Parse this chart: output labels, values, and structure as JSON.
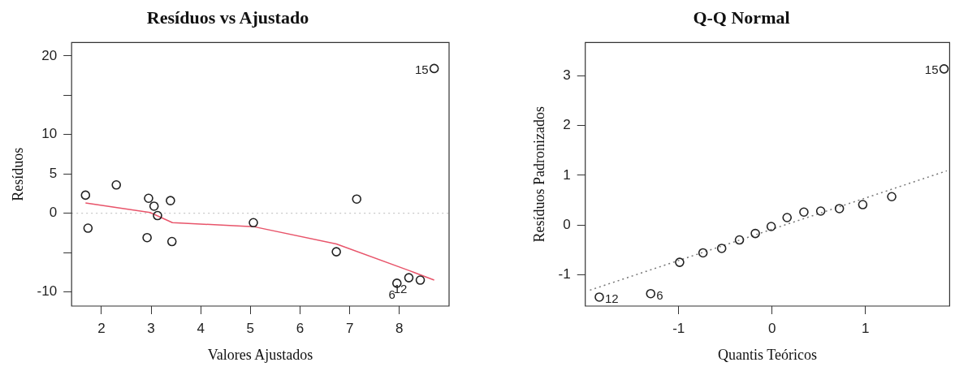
{
  "chart_data": [
    {
      "type": "scatter",
      "title": "Resíduos vs Ajustado",
      "xlabel": "Valores Ajustados",
      "ylabel": "Resíduos",
      "grid": false,
      "legend": false,
      "xlim": [
        1.4,
        9.0
      ],
      "xticks": [
        2,
        3,
        4,
        5,
        6,
        7,
        8
      ],
      "ylim": [
        -11.8,
        21.7
      ],
      "yticks": [
        -10,
        {
          "value": -5,
          "label": null
        },
        0,
        5,
        10,
        {
          "value": 15,
          "label": null
        },
        20
      ],
      "series": [
        {
          "marker": "circle",
          "color": "#222222",
          "x": [
            1.68,
            1.73,
            2.3,
            2.95,
            2.92,
            3.06,
            3.13,
            3.39,
            3.42,
            5.06,
            6.73,
            7.14,
            7.95,
            8.19,
            8.42,
            8.7
          ],
          "values": [
            2.3,
            -1.9,
            3.6,
            1.9,
            -3.1,
            0.9,
            -0.3,
            1.6,
            -3.6,
            -1.2,
            -4.9,
            1.8,
            -8.9,
            -8.2,
            -8.5,
            18.4
          ]
        },
        {
          "type": "line",
          "color": "#e8546a",
          "line_style": "solid",
          "x": [
            1.68,
            2.98,
            3.43,
            5.06,
            6.73,
            8.2,
            8.7
          ],
          "values": [
            1.3,
            0.1,
            -1.2,
            -1.7,
            -3.9,
            -7.3,
            -8.5
          ]
        }
      ],
      "ref_lines": [
        {
          "axis": "y",
          "value": 0,
          "color": "#c8c8c8",
          "line_style": "dotted"
        }
      ],
      "annotations": [
        {
          "text": "15",
          "x": 8.7,
          "y": 18.4
        },
        {
          "text": "6",
          "x": 7.95,
          "y": -8.9
        },
        {
          "text": "12",
          "x": 8.19,
          "y": -8.2
        }
      ]
    },
    {
      "type": "scatter",
      "title": "Q-Q Normal",
      "xlabel": "Quantis Teóricos",
      "ylabel": "Resíduos Padronizados",
      "grid": false,
      "legend": false,
      "xlim": [
        -2.0,
        1.9
      ],
      "xticks": [
        -1,
        0,
        1
      ],
      "ylim": [
        -1.63,
        3.67
      ],
      "yticks": [
        -1,
        0,
        1,
        2,
        3
      ],
      "series": [
        {
          "marker": "circle",
          "color": "#222222",
          "x": [
            -1.85,
            -1.3,
            -0.99,
            -0.74,
            -0.54,
            -0.35,
            -0.18,
            -0.01,
            0.16,
            0.34,
            0.52,
            0.72,
            0.97,
            1.28,
            1.84
          ],
          "values": [
            -1.45,
            -1.38,
            -0.75,
            -0.56,
            -0.47,
            -0.3,
            -0.17,
            -0.03,
            0.15,
            0.26,
            0.28,
            0.33,
            0.41,
            0.57,
            3.14
          ]
        },
        {
          "type": "line",
          "color": "#777777",
          "line_style": "dotted",
          "x": [
            -1.95,
            1.87
          ],
          "values": [
            -1.31,
            1.09
          ]
        }
      ],
      "annotations": [
        {
          "text": "12",
          "x": -1.85,
          "y": -1.45
        },
        {
          "text": "6",
          "x": -1.3,
          "y": -1.38
        },
        {
          "text": "15",
          "x": 1.84,
          "y": 3.14
        }
      ]
    }
  ]
}
